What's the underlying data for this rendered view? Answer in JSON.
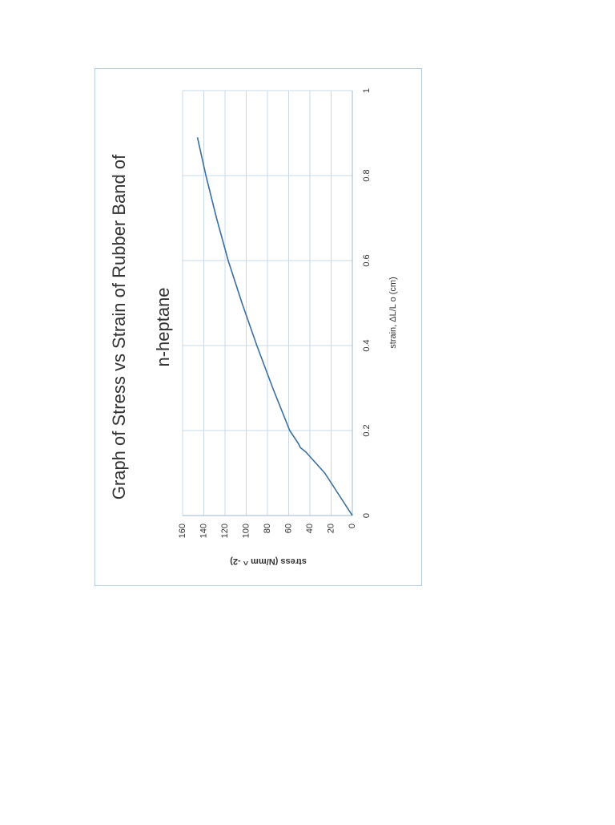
{
  "chart_data": {
    "type": "line",
    "title": [
      "Graph of Stress vs Strain of Rubber  Band of",
      "n-heptane"
    ],
    "x_label": "strain, ΔL/L o (cm)",
    "y_label": "stress (N/mm ^ -2)",
    "series": [
      {
        "color": "#3a6f9f",
        "x": [
          0,
          0.05,
          0.1,
          0.15,
          0.16,
          0.17,
          0.2,
          0.3,
          0.4,
          0.5,
          0.6,
          0.7,
          0.8,
          0.89
        ],
        "values": [
          0,
          13,
          26,
          44,
          49,
          51,
          59,
          75,
          90,
          104,
          117,
          128,
          138,
          146
        ]
      }
    ],
    "xlim": [
      0,
      1
    ],
    "xticks": [
      0,
      0.2,
      0.4,
      0.6,
      0.8,
      1
    ],
    "ylim": [
      0,
      160
    ],
    "yticks": [
      0,
      20,
      40,
      60,
      80,
      100,
      120,
      140,
      160
    ],
    "grid": true
  }
}
